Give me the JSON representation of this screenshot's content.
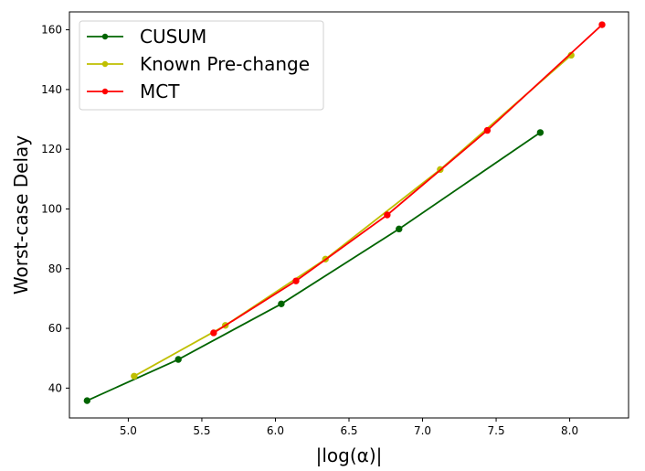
{
  "chart_data": {
    "type": "line",
    "xlabel": "|log(α)|",
    "ylabel": "Worst-case Delay",
    "xlim": [
      4.6,
      8.4
    ],
    "ylim": [
      30,
      166
    ],
    "x_ticks": [
      "5.0",
      "5.5",
      "6.0",
      "6.5",
      "7.0",
      "7.5",
      "8.0"
    ],
    "y_ticks": [
      "40",
      "60",
      "80",
      "100",
      "120",
      "140",
      "160"
    ],
    "grid": false,
    "legend_position": "top-left",
    "series": [
      {
        "name": "CUSUM",
        "color": "#006400",
        "marker": "circle",
        "x": [
          4.72,
          5.34,
          6.04,
          6.84,
          7.8
        ],
        "y": [
          35.8,
          49.6,
          68.2,
          93.3,
          125.6
        ]
      },
      {
        "name": "Known Pre-change",
        "color": "#bfbf00",
        "marker": "circle",
        "x": [
          5.04,
          5.66,
          6.34,
          7.12,
          8.01
        ],
        "y": [
          44.0,
          61.0,
          83.2,
          113.2,
          151.5
        ]
      },
      {
        "name": "MCT",
        "color": "#ff0000",
        "marker": "circle",
        "x": [
          5.58,
          6.14,
          6.76,
          7.44,
          8.22
        ],
        "y": [
          58.5,
          75.9,
          98.0,
          126.3,
          161.7
        ]
      }
    ]
  }
}
